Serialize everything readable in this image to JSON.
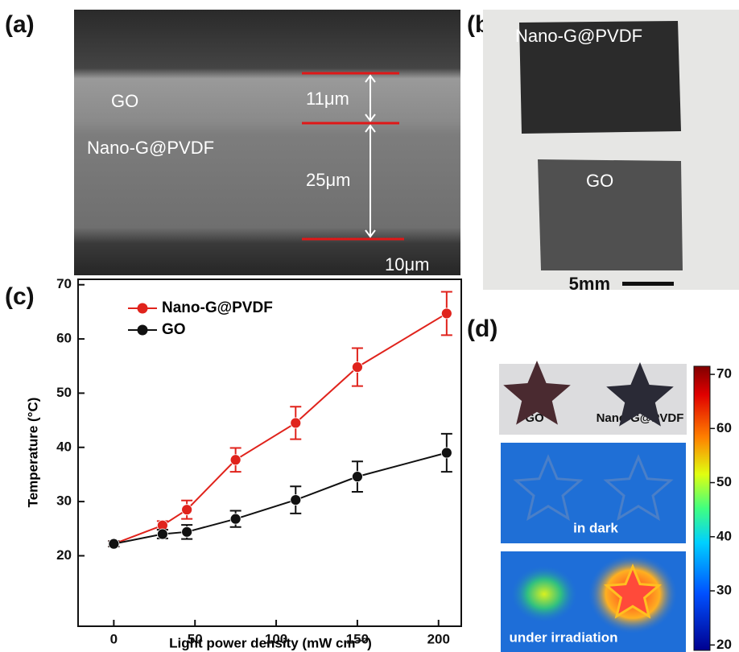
{
  "panels": {
    "a": {
      "label": "(a)",
      "layer_top": "GO",
      "layer_bottom": "Nano-G@PVDF",
      "thickness_top": "11μm",
      "thickness_bottom": "25μm",
      "scale_bar": "10μm"
    },
    "b": {
      "label": "(b)",
      "film_top": "Nano-G@PVDF",
      "film_bottom": "GO",
      "scale_bar": "5mm"
    },
    "d": {
      "label": "(d)",
      "star_left": "GO",
      "star_right": "Nano-G@PVDF",
      "middle": "in dark",
      "bottom": "under irradiation",
      "colorbar": {
        "lim": [
          19,
          71.5
        ],
        "ticks": [
          20,
          30,
          40,
          50,
          60,
          70
        ]
      }
    }
  },
  "chart_data": {
    "type": "line",
    "panel_label": "(c)",
    "x_label": "Light power density (mW cm⁻²)",
    "y_label": "Temperature (°C)",
    "x": [
      0,
      30,
      45,
      75,
      112,
      150,
      205
    ],
    "series": [
      {
        "name": "Nano-G@PVDF",
        "color": "#e0231c",
        "values": [
          22.2,
          25.6,
          28.5,
          37.7,
          44.5,
          54.8,
          64.7
        ],
        "errors": [
          0.5,
          0.8,
          1.7,
          2.2,
          3,
          3.5,
          4
        ]
      },
      {
        "name": "GO",
        "color": "#111111",
        "values": [
          22.2,
          24.0,
          24.4,
          26.8,
          30.3,
          34.6,
          39.0
        ],
        "errors": [
          0.5,
          0.8,
          1.3,
          1.5,
          2.5,
          2.8,
          3.5
        ]
      }
    ],
    "xlim": [
      -22,
      214
    ],
    "ylim": [
      7,
      71
    ],
    "xticks": [
      0,
      50,
      100,
      150,
      200
    ],
    "yticks": [
      20,
      30,
      40,
      50,
      60,
      70
    ],
    "legend": "upper left"
  }
}
